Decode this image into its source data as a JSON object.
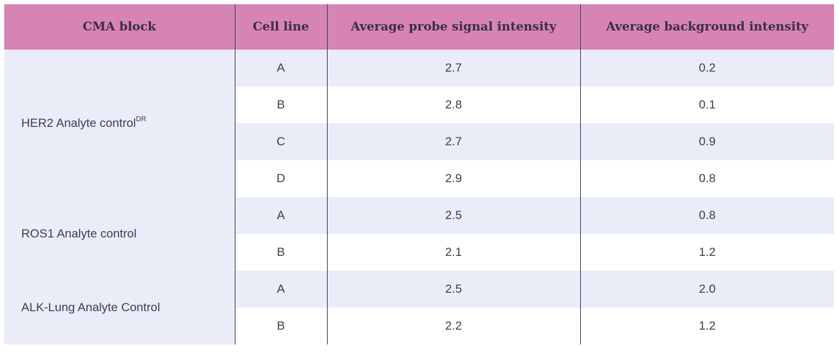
{
  "table": {
    "headers": {
      "block": "CMA block",
      "cell_line": "Cell line",
      "signal": "Average probe signal intensity",
      "background": "Average background intensity"
    },
    "groups": [
      {
        "name": "HER2 Analyte control",
        "superscript": "DR",
        "rows": [
          {
            "cell_line": "A",
            "signal": "2.7",
            "background": "0.2"
          },
          {
            "cell_line": "B",
            "signal": "2.8",
            "background": "0.1"
          },
          {
            "cell_line": "C",
            "signal": "2.7",
            "background": "0.9"
          },
          {
            "cell_line": "D",
            "signal": "2.9",
            "background": "0.8"
          }
        ]
      },
      {
        "name": "ROS1 Analyte control",
        "rows": [
          {
            "cell_line": "A",
            "signal": "2.5",
            "background": "0.8"
          },
          {
            "cell_line": "B",
            "signal": "2.1",
            "background": "1.2"
          }
        ]
      },
      {
        "name": "ALK-Lung Analyte Control",
        "rows": [
          {
            "cell_line": "A",
            "signal": "2.5",
            "background": "2.0"
          },
          {
            "cell_line": "B",
            "signal": "2.2",
            "background": "1.2"
          }
        ]
      }
    ]
  },
  "colors": {
    "header_bg": "#d684b3",
    "row_shade": "#eaecf8",
    "row_plain": "#ffffff",
    "divider": "#3f3f5a"
  }
}
